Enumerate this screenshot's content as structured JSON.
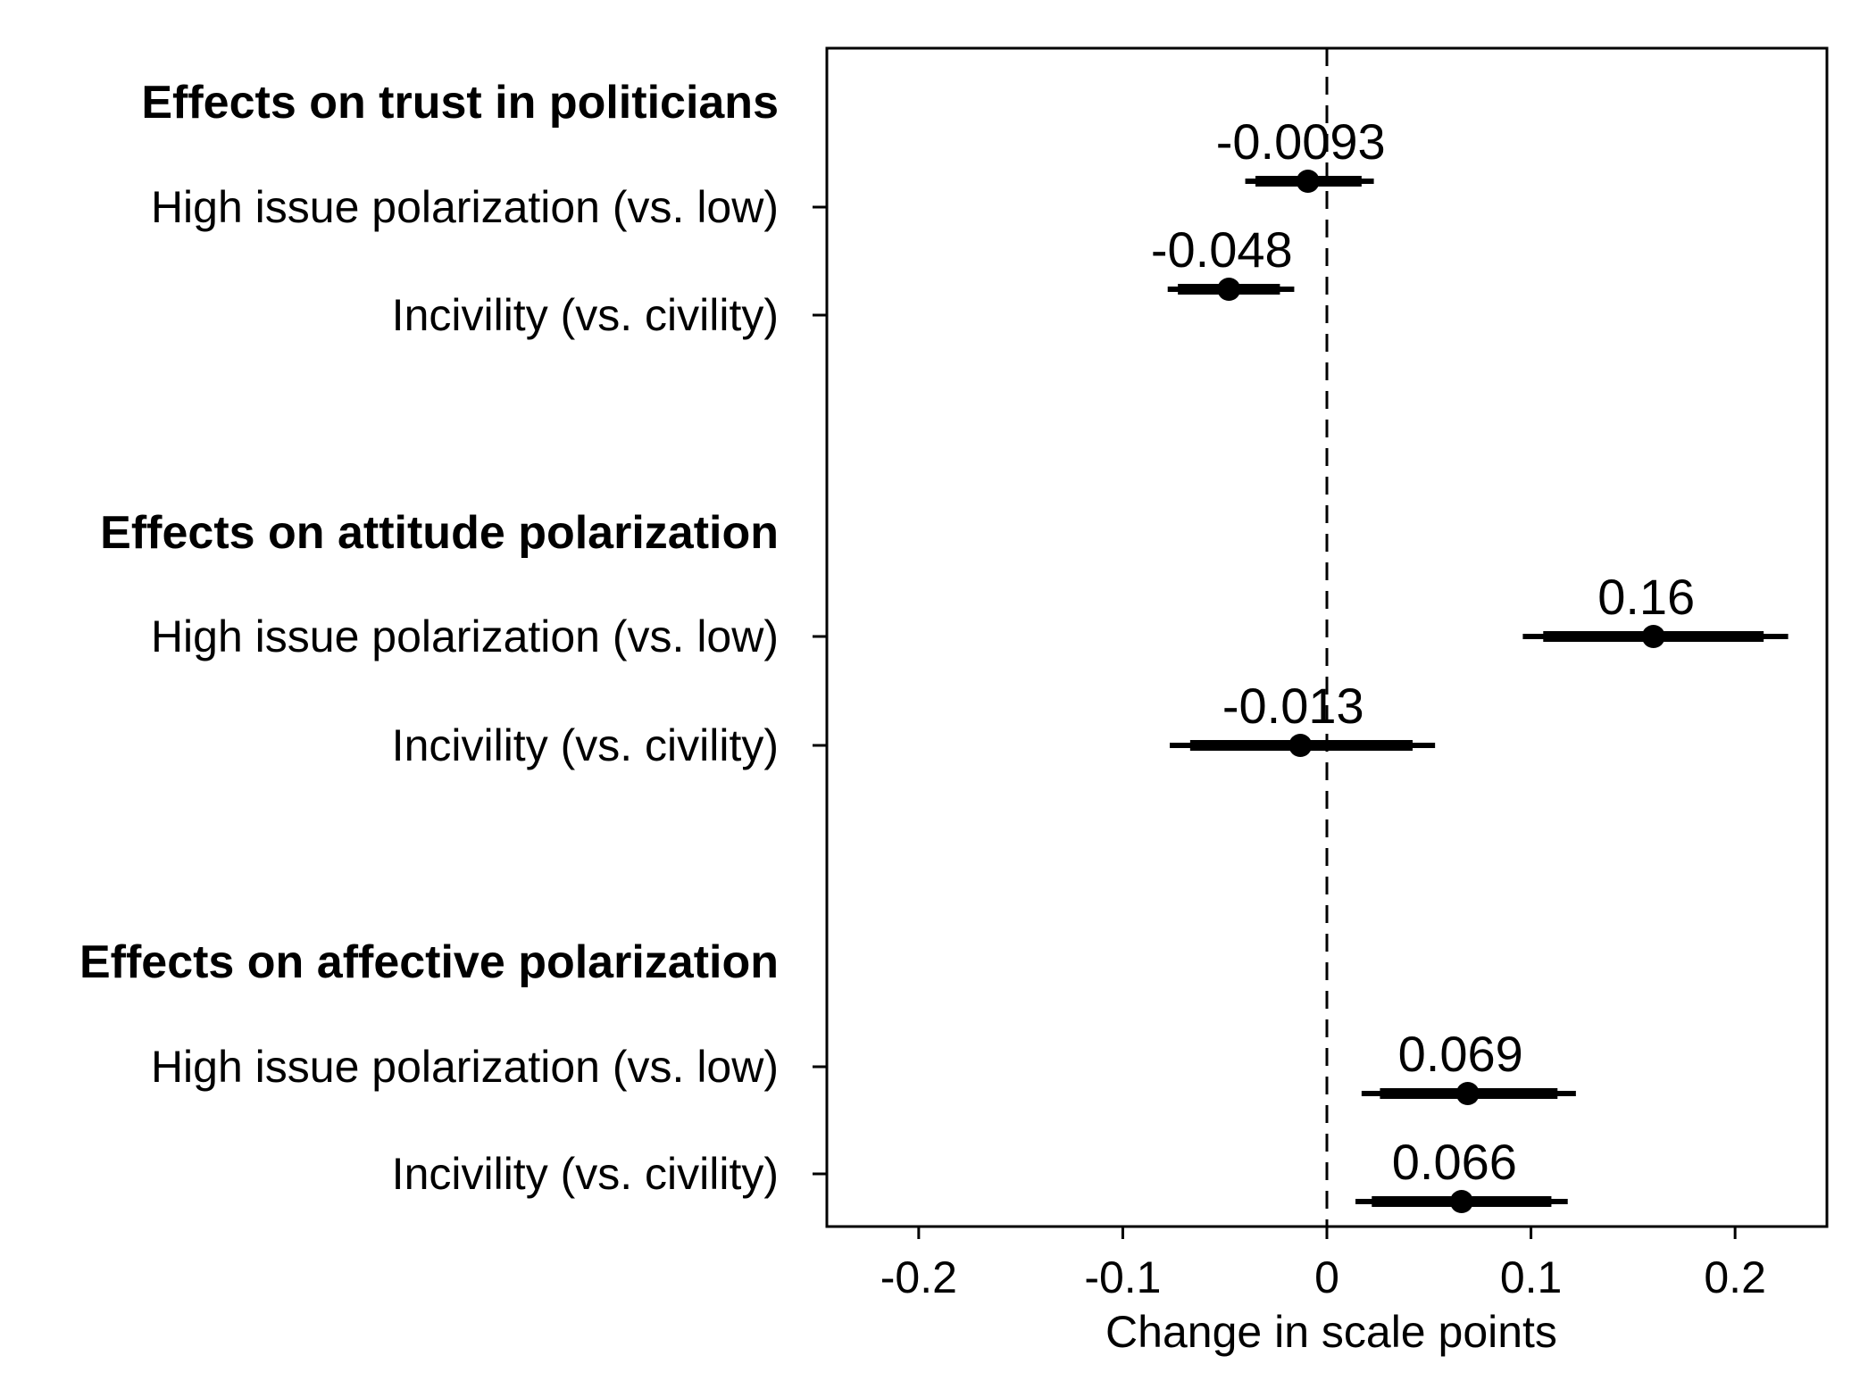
{
  "chart_data": {
    "type": "coefficient-plot",
    "xlabel": "Change in scale points",
    "xlim": [
      -0.245,
      0.245
    ],
    "xticks": [
      -0.2,
      -0.1,
      0,
      0.1,
      0.2
    ],
    "xtick_labels": [
      "-0.2",
      "-0.1",
      "0",
      "0.1",
      "0.2"
    ],
    "reference_line": 0,
    "groups": [
      {
        "title": "Effects on trust in politicians",
        "rows": [
          {
            "label": "High issue polarization (vs. low)",
            "estimate": -0.0093,
            "value_label": "-0.0093",
            "ci90": [
              -0.035,
              0.017
            ],
            "ci95": [
              -0.04,
              0.023
            ]
          },
          {
            "label": "Incivility (vs. civility)",
            "estimate": -0.048,
            "value_label": "-0.048",
            "ci90": [
              -0.073,
              -0.023
            ],
            "ci95": [
              -0.078,
              -0.016
            ]
          }
        ]
      },
      {
        "title": "Effects on attitude polarization",
        "rows": [
          {
            "label": "High issue polarization (vs. low)",
            "estimate": 0.16,
            "value_label": "0.16",
            "ci90": [
              0.106,
              0.214
            ],
            "ci95": [
              0.096,
              0.226
            ]
          },
          {
            "label": "Incivility (vs. civility)",
            "estimate": -0.013,
            "value_label": "-0.013",
            "ci90": [
              -0.067,
              0.042
            ],
            "ci95": [
              -0.077,
              0.053
            ]
          }
        ]
      },
      {
        "title": "Effects on affective polarization",
        "rows": [
          {
            "label": "High issue polarization (vs. low)",
            "estimate": 0.069,
            "value_label": "0.069",
            "ci90": [
              0.026,
              0.113
            ],
            "ci95": [
              0.017,
              0.122
            ]
          },
          {
            "label": "Incivility (vs. civility)",
            "estimate": 0.066,
            "value_label": "0.066",
            "ci90": [
              0.022,
              0.11
            ],
            "ci95": [
              0.014,
              0.118
            ]
          }
        ]
      }
    ]
  }
}
